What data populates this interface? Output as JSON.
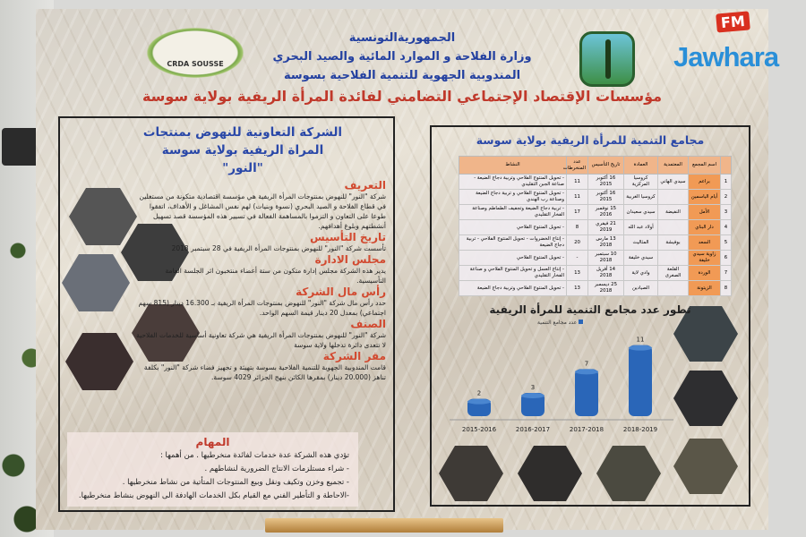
{
  "header": {
    "line1": "الجمهوريةالتونسية",
    "line2": "وزارة الفلاحة و الموارد المائية والصيد البحري",
    "line3": "المندوبية الجهوية للتنمية الفلاحية بسوسة",
    "title": "مؤسسات الإقتصاد الإجتماعي التضامني لفائدة المرأة الريفية بولاية سوسة"
  },
  "logos": {
    "crda": "CRDA SOUSSE",
    "watermark_fm": "FM",
    "watermark_name": "Jawhara",
    "ministry": "ministry-wheat-logo"
  },
  "left": {
    "title1": "الشركة التعاونية للنهوض بمنتجات",
    "title2": "المراة الريفية بولاية سوسة",
    "title3": "\"النور\"",
    "sections": [
      {
        "h": "التعريف",
        "p": "شركة \"النور\" للنهوض بمنتوجات المرأة الريفية هي مؤسسة اقتصادية متكونة من مستغلين في قطاع الفلاحة و الصيد البحري (نسوة وبنيات) لهم نفس المشاغل و الأهداف، اتفقوا طوعا على التعاون و التزموا بالمساهمة الفعالة في تسيير هذه المؤسسة قصد تسهيل أنشطتهم وبلوغ أهدافهم."
      },
      {
        "h": "تاريخ التأسيس",
        "p": "تأسست شركة \"النور\" للنهوض بمنتوجات المرأة الريفية في 28 سبتمبر 2018"
      },
      {
        "h": "مجلس الادارة",
        "p": "يدير هذه الشركة مجلس إدارة متكون من ستة أعضاء منتخبون اثر الجلسة العامة التأسيسية."
      },
      {
        "h": "رأس مال الشركة",
        "p": "حدد رأس مال شركة \"النور\" للنهوض بمنتوجات المرأة الريفية بـ 16.300 دينار (815 سهم اجتماعي) بمعدل 20 دينار قيمة السهم الواحد."
      },
      {
        "h": "الصنف",
        "p": "شركة \"النور\" للنهوض بمنتوجات المرأة الريفية هي شركة تعاونية أساسية للخدمات الفلاحية لا تتعدى دائرة تدخلها ولاية سوسة"
      },
      {
        "h": "مقر الشركة",
        "p": "قامت المندوبية الجهوية للتنمية الفلاحية بسوسة بتهيئة و تجهيز فضاء شركة \"النور\" بكلفة تناهز (20.000 دينار) بمقرها الكائن بنهج الجزائر 4029 سوسة."
      }
    ],
    "mission": {
      "h": "المهام",
      "items": [
        "تؤدي هذه الشركة عدة خدمات لفائدة منخرطيها . من أهمها :",
        "- شراء مستلزمات الانتاج الضرورية لنشاطهم .",
        "- تجميع وخزن وتكيف ونقل وبيع المنتوجات المتأتية من نشاط منخرطيها .",
        "-الاحاطة و التأطير الفني مع القيام بكل الخدمات الهادفة الى النهوض بنشاط منخرطيها."
      ]
    }
  },
  "right": {
    "title": "مجامع التنمية للمرأة الريفية بولاية سوسة",
    "table": {
      "headers": [
        "",
        "اسم المجمع",
        "المعتمدية",
        "العمادة",
        "تاريخ التأسيس",
        "عدد المنخرطات",
        "النشاط"
      ],
      "rows": [
        [
          "1",
          "براعم",
          "سيدي الهاني",
          "كروسيا المركزية",
          "16 أكتوبر 2015",
          "11",
          "- تحويل المنتوج الفلاحي وتربية دجاج الضيعة - صناعة الجبن التقليدي"
        ],
        [
          "2",
          "أيام الياسمين",
          "",
          "كروسيا الغربية",
          "16 أكتوبر 2015",
          "11",
          "- تحويل المنتوج الفلاحي و تربية دجاج الضيعة وصناعة رب الهندي"
        ],
        [
          "3",
          "الأمل",
          "النفيضة",
          "سيدي سعيدان",
          "15 نوفمبر 2016",
          "17",
          "- تربية دجاج الضيعة وتجفيف الطماطم وصناعة الفخار التقليدي"
        ],
        [
          "4",
          "دار البناي",
          "",
          "أولاد عبد الله",
          "21 فيفري 2019",
          "8",
          "- تحويل المنتوج الفلاحي"
        ],
        [
          "5",
          "السعد",
          "بوفيشة",
          "المثاليث",
          "13 مارس 2018",
          "20",
          "- إنتاج الخضروات - تحويل المنتوج الفلاحي - تربية دجاج الضيعة"
        ],
        [
          "6",
          "زاوية سيدي خليفة",
          "",
          "سيدي خليفة",
          "10 سبتمبر 2018",
          "-",
          "- تحويل المنتوج الفلاحي"
        ],
        [
          "7",
          "الوردة",
          "القلعة الصغرى",
          "وادي لاية",
          "14 أفريل 2018",
          "13",
          "- إنتاج العسل و تحويل المنتوج الفلاحي و صناعة الفخار التقليدي"
        ],
        [
          "8",
          "الزيتونة",
          "",
          "الصيادين",
          "25 ديسمبر 2018",
          "13",
          "- تحويل المنتوج الفلاحي وتربية دجاج الضيعة"
        ]
      ]
    }
  },
  "chart_data": {
    "type": "bar",
    "title": "تطور عدد مجامع التنمية للمرأة الريفية",
    "categories": [
      "2015-2016",
      "2016-2017",
      "2017-2018",
      "2018-2019"
    ],
    "series": [
      {
        "name": "عدد مجامع التنمية",
        "values": [
          2,
          3,
          7,
          11
        ],
        "color": "#2a66b8"
      }
    ],
    "legend": "top",
    "grid": false
  }
}
